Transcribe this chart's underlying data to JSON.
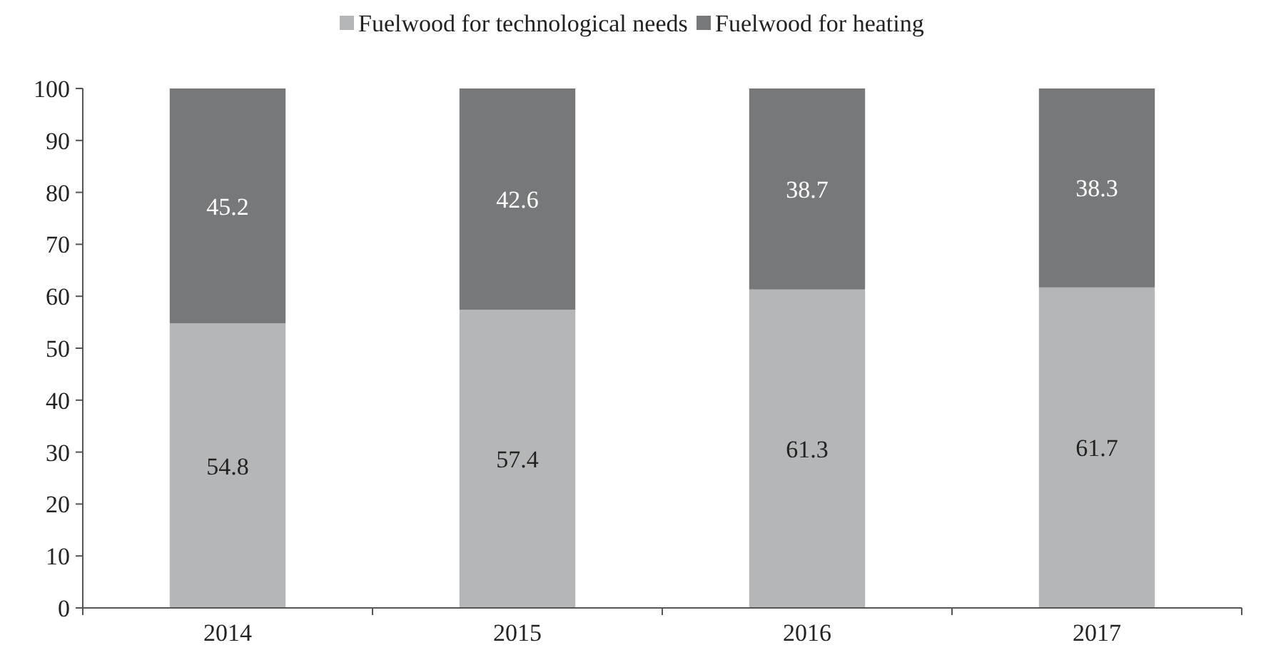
{
  "chart_data": {
    "type": "bar",
    "stacked": true,
    "categories": [
      "2014",
      "2015",
      "2016",
      "2017"
    ],
    "series": [
      {
        "name": "Fuelwood for technological needs",
        "color": "#b5b6b7",
        "values": [
          54.8,
          57.4,
          61.3,
          61.7
        ]
      },
      {
        "name": "Fuelwood for heating",
        "color": "#777879",
        "values": [
          45.2,
          42.6,
          38.7,
          38.3
        ]
      }
    ],
    "ylim": [
      0,
      100
    ],
    "yticks": [
      0,
      10,
      20,
      30,
      40,
      50,
      60,
      70,
      80,
      90,
      100
    ],
    "grid": false,
    "legend": "top",
    "data_labels": true
  }
}
